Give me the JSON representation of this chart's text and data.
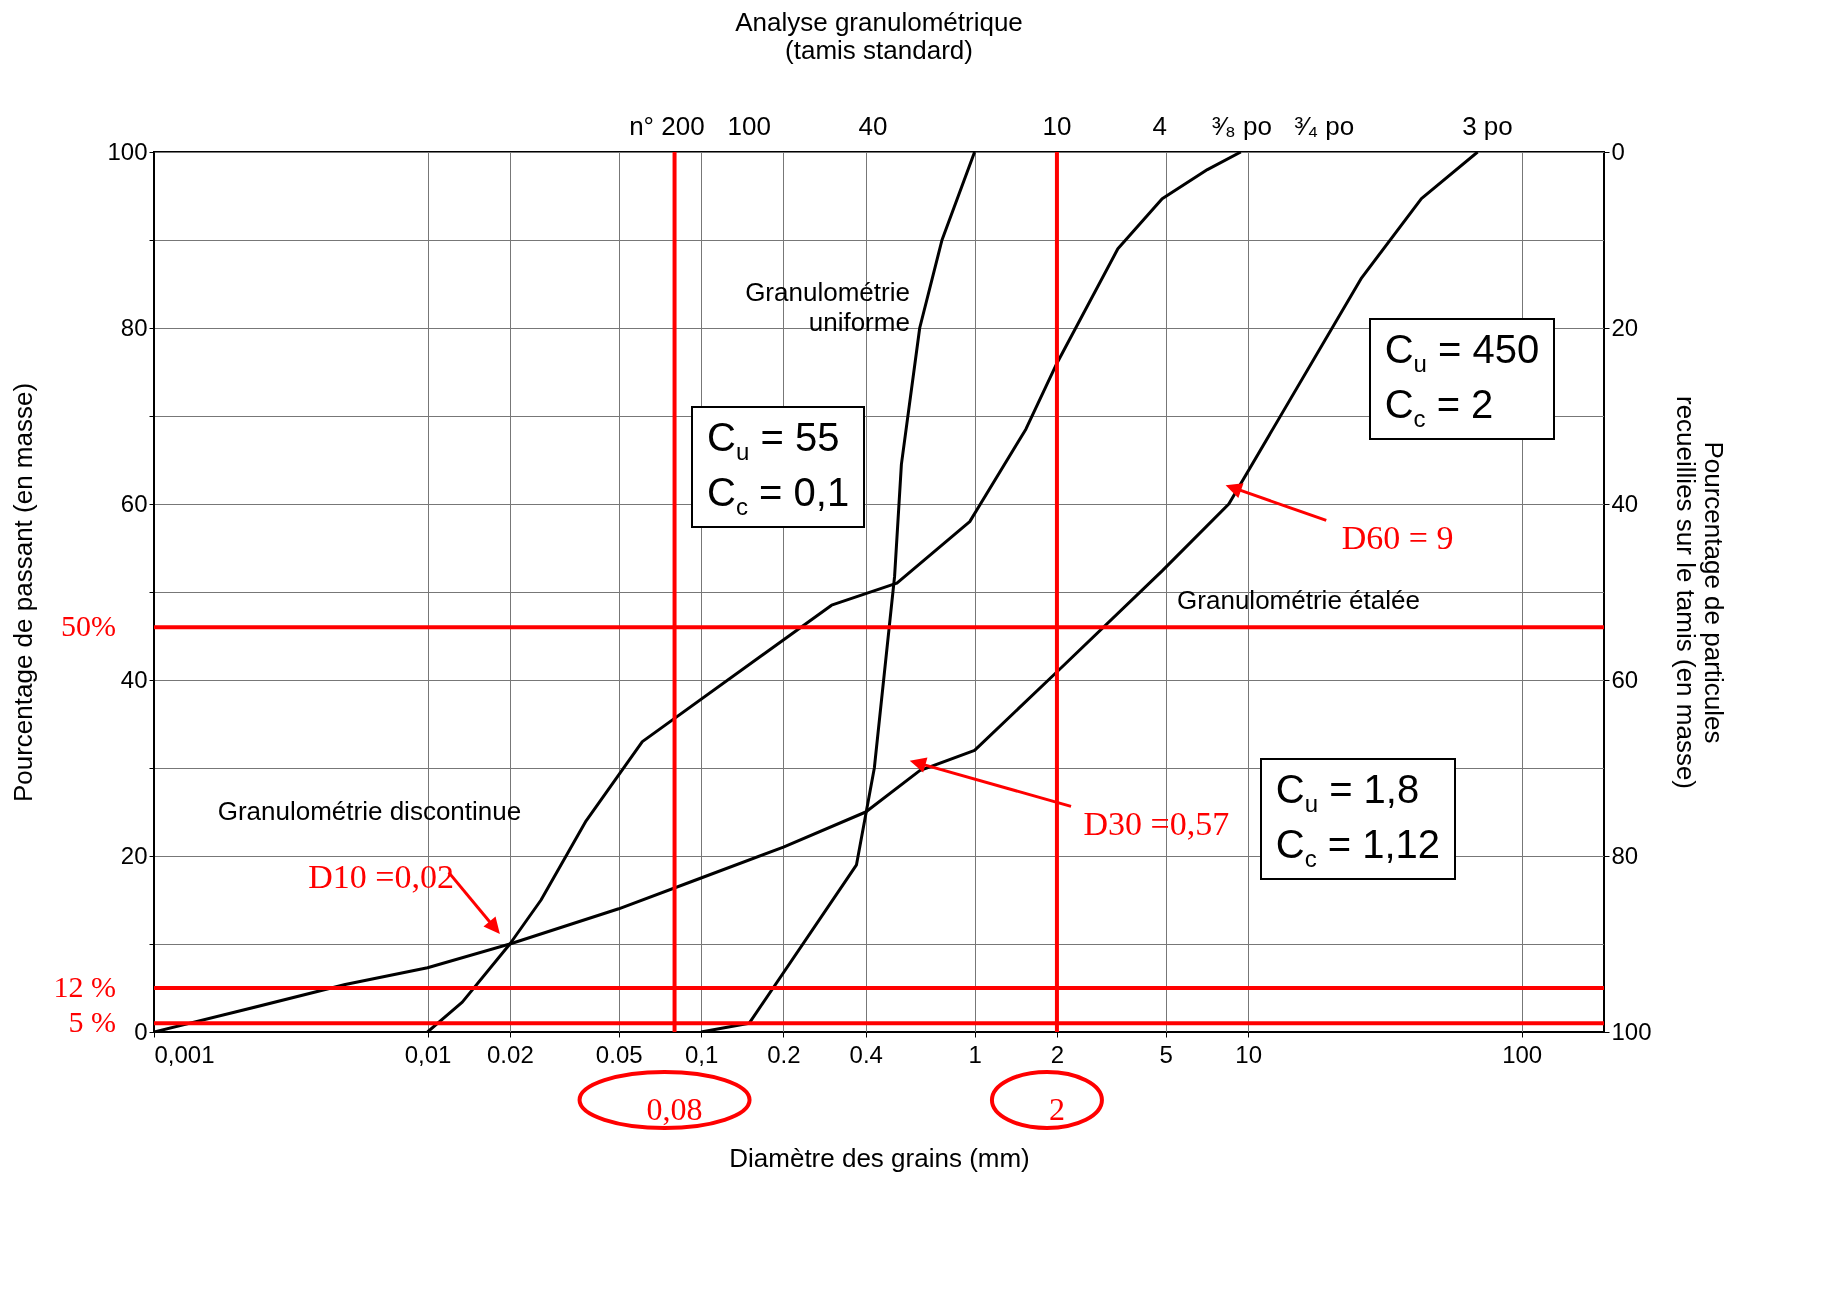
{
  "chart_data": {
    "type": "line",
    "title": "Analyse granulométrique\n(tamis standard)",
    "xlabel": "Diamètre des grains (mm)",
    "ylabel": "Pourcentage de passant (en masse)",
    "y2label": "Pourcentage de particules\nrecueillies sur le tamis (en masse)",
    "log": "x",
    "grid": true,
    "xlim": [
      0.001,
      200
    ],
    "xticks": [
      {
        "value": 0.001,
        "label": "0,001"
      },
      {
        "value": 0.01,
        "label": "0,01"
      },
      0.02,
      0.05,
      {
        "value": 0.1,
        "label": "0,1"
      },
      0.2,
      0.4,
      1,
      2,
      5,
      10,
      100
    ],
    "ylim": [
      0,
      100
    ],
    "yticks": [
      0,
      {
        "value": 10,
        "label": null
      },
      20,
      {
        "value": 30,
        "label": null
      },
      40,
      {
        "value": 50,
        "label": null
      },
      60,
      {
        "value": 70,
        "label": null
      },
      80,
      {
        "value": 90,
        "label": null
      },
      100
    ],
    "y2lim": [
      100,
      0
    ],
    "y2ticks": [
      0,
      20,
      40,
      60,
      80,
      100
    ],
    "series": [
      {
        "name": "Granulométrie uniforme",
        "color": "#000000",
        "x": [
          0.1,
          0.15,
          0.37,
          0.43,
          0.51,
          0.54,
          0.63,
          0.76,
          1
        ],
        "values": [
          0,
          1,
          19,
          30,
          51.8,
          64.5,
          80,
          90,
          100
        ]
      },
      {
        "name": "Granulométrie discontinue",
        "color": "#000000",
        "x": [
          0.01,
          0.0134,
          0.02,
          0.026,
          0.038,
          0.061,
          0.3,
          0.52,
          0.96,
          1.54,
          2,
          3.34,
          4.85,
          7.1,
          9.4
        ],
        "values": [
          0,
          3.4,
          10,
          15,
          24,
          33,
          48.5,
          51,
          58,
          68.5,
          76,
          89,
          94.7,
          98,
          100
        ]
      },
      {
        "name": "Granulométrie étalée",
        "color": "#000000",
        "x": [
          0.001,
          0.002,
          0.005,
          0.01,
          0.02,
          0.05,
          0.1,
          0.2,
          0.4,
          0.63,
          1,
          1.95,
          4.85,
          8.5,
          26,
          43,
          69
        ],
        "values": [
          0,
          2.3,
          5.4,
          7.3,
          10,
          14,
          17.5,
          21,
          25,
          29.7,
          32,
          40.6,
          52.4,
          60,
          85.7,
          94.7,
          100
        ]
      }
    ],
    "ref_lines": [
      {
        "axis": "y",
        "value": 46,
        "color": "#ff0000"
      },
      {
        "axis": "y",
        "value": 5,
        "color": "#ff0000"
      },
      {
        "axis": "y",
        "value": 1,
        "color": "#ff0000"
      },
      {
        "axis": "x",
        "value": 0.08,
        "label": "0,08",
        "color": "#ff0000"
      },
      {
        "axis": "x",
        "value": 2,
        "label": "2",
        "color": "#ff0000"
      }
    ],
    "annotations": [
      "C$_{u}$ = 55\nC$_{c}$ = 0,1",
      "C$_{u}$ = 1,8\nC$_{c}$ = 1,12",
      "C$_{u}$ = 450\nC$_{c}$ = 2",
      {
        "text": "D10 =0,02",
        "x": 0.02,
        "y": 10
      },
      {
        "text": "D30 =0,57",
        "x": 0.63,
        "y": 29.7
      },
      {
        "text": "D60 = 9",
        "x": 9,
        "y": 61
      },
      "50%",
      "12 %",
      "5 %",
      "n° 200",
      "100",
      "40",
      "10",
      "4",
      "³⁄₈ po",
      "³⁄₄ po",
      "3 po"
    ]
  }
}
